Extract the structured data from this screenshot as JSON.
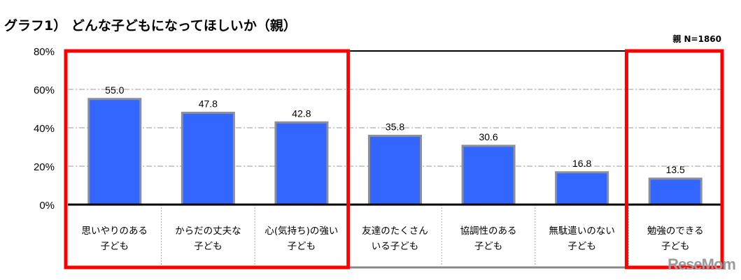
{
  "chart_data": {
    "type": "bar",
    "title": "グラフ1） どんな子どもになってほしいか（親）",
    "note": "親 N=1860",
    "categories": [
      [
        "思いやりのある",
        "子ども"
      ],
      [
        "からだの丈夫な",
        "子ども"
      ],
      [
        "心(気持ち)の強い",
        "子ども"
      ],
      [
        "友達のたくさん",
        "いる子ども"
      ],
      [
        "協調性のある",
        "子ども"
      ],
      [
        "無駄遣いのない",
        "子ども"
      ],
      [
        "勉強のできる",
        "子ども"
      ]
    ],
    "values": [
      55.0,
      47.8,
      42.8,
      35.8,
      30.6,
      16.8,
      13.5
    ],
    "ylim": [
      0,
      80
    ],
    "yticks": [
      "0%",
      "20%",
      "40%",
      "60%",
      "80%"
    ],
    "grid": true,
    "bar_color": "#3366ff",
    "highlight_color": "#ff0000",
    "highlight_groups": [
      [
        0,
        2
      ],
      [
        6,
        6
      ]
    ]
  },
  "watermark": "ReseMom"
}
